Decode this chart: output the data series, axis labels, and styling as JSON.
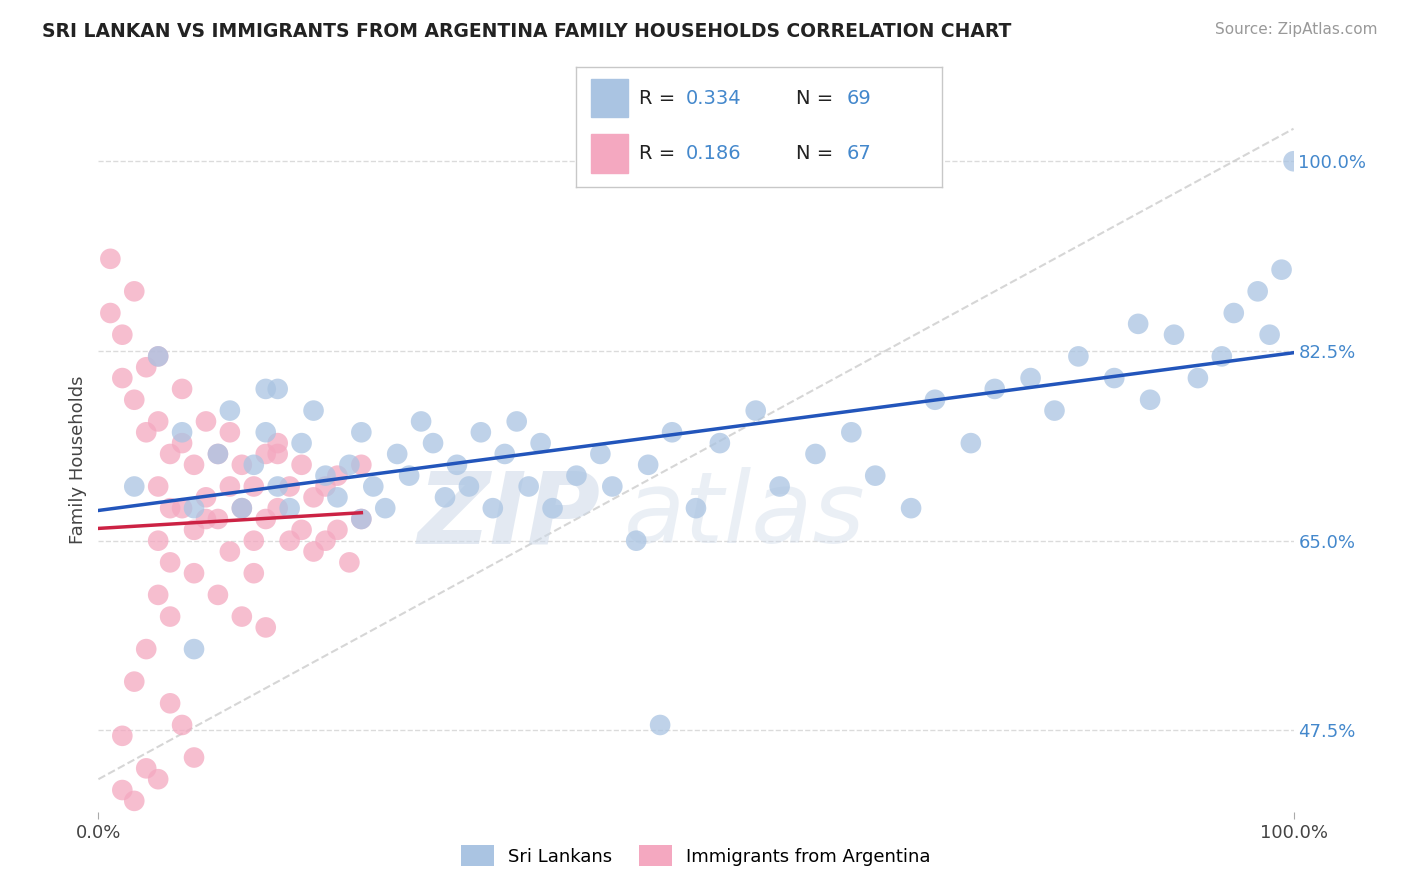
{
  "title": "SRI LANKAN VS IMMIGRANTS FROM ARGENTINA FAMILY HOUSEHOLDS CORRELATION CHART",
  "source": "Source: ZipAtlas.com",
  "ylabel": "Family Households",
  "xlim": [
    0,
    100
  ],
  "ylim": [
    40,
    105
  ],
  "yticks": [
    47.5,
    65.0,
    82.5,
    100.0
  ],
  "ytick_labels": [
    "47.5%",
    "65.0%",
    "82.5%",
    "100.0%"
  ],
  "xtick_left": "0.0%",
  "xtick_right": "100.0%",
  "r1": "0.334",
  "n1": "69",
  "r2": "0.186",
  "n2": "67",
  "color_blue": "#aac4e2",
  "color_pink": "#f4a8c0",
  "line_blue": "#2255bb",
  "line_pink": "#cc2244",
  "grid_color": "#d8d8d8",
  "bg_color": "#ffffff",
  "title_color": "#222222",
  "source_color": "#999999",
  "ytick_color": "#4488cc",
  "blue_x": [
    3,
    5,
    7,
    8,
    10,
    11,
    12,
    13,
    14,
    15,
    15,
    16,
    17,
    18,
    19,
    20,
    21,
    22,
    22,
    23,
    24,
    25,
    26,
    27,
    28,
    29,
    30,
    31,
    32,
    33,
    34,
    35,
    36,
    37,
    38,
    40,
    42,
    43,
    45,
    46,
    48,
    50,
    52,
    55,
    57,
    60,
    63,
    65,
    68,
    70,
    73,
    75,
    78,
    80,
    82,
    85,
    87,
    88,
    90,
    92,
    94,
    95,
    97,
    98,
    99,
    100,
    8,
    14,
    47
  ],
  "blue_y": [
    70,
    82,
    75,
    68,
    73,
    77,
    68,
    72,
    75,
    70,
    79,
    68,
    74,
    77,
    71,
    69,
    72,
    75,
    67,
    70,
    68,
    73,
    71,
    76,
    74,
    69,
    72,
    70,
    75,
    68,
    73,
    76,
    70,
    74,
    68,
    71,
    73,
    70,
    65,
    72,
    75,
    68,
    74,
    77,
    70,
    73,
    75,
    71,
    68,
    78,
    74,
    79,
    80,
    77,
    82,
    80,
    85,
    78,
    84,
    80,
    82,
    86,
    88,
    84,
    90,
    100,
    55,
    79,
    48
  ],
  "pink_x": [
    1,
    1,
    2,
    2,
    3,
    3,
    4,
    4,
    5,
    5,
    5,
    6,
    6,
    7,
    7,
    8,
    8,
    9,
    9,
    10,
    10,
    11,
    11,
    12,
    12,
    13,
    13,
    14,
    14,
    15,
    15,
    16,
    16,
    17,
    17,
    18,
    18,
    19,
    19,
    20,
    20,
    21,
    22,
    22,
    5,
    5,
    6,
    7,
    8,
    9,
    10,
    11,
    12,
    13,
    14,
    3,
    4,
    6,
    7,
    4,
    5,
    3,
    2,
    6,
    8,
    15,
    2
  ],
  "pink_y": [
    91,
    86,
    84,
    80,
    88,
    78,
    75,
    81,
    70,
    76,
    82,
    73,
    68,
    79,
    74,
    72,
    66,
    76,
    69,
    73,
    67,
    70,
    75,
    68,
    72,
    65,
    70,
    67,
    73,
    68,
    74,
    65,
    70,
    66,
    72,
    64,
    69,
    65,
    70,
    66,
    71,
    63,
    67,
    72,
    60,
    65,
    63,
    68,
    62,
    67,
    60,
    64,
    58,
    62,
    57,
    52,
    55,
    50,
    48,
    44,
    43,
    41,
    42,
    58,
    45,
    73,
    47
  ]
}
